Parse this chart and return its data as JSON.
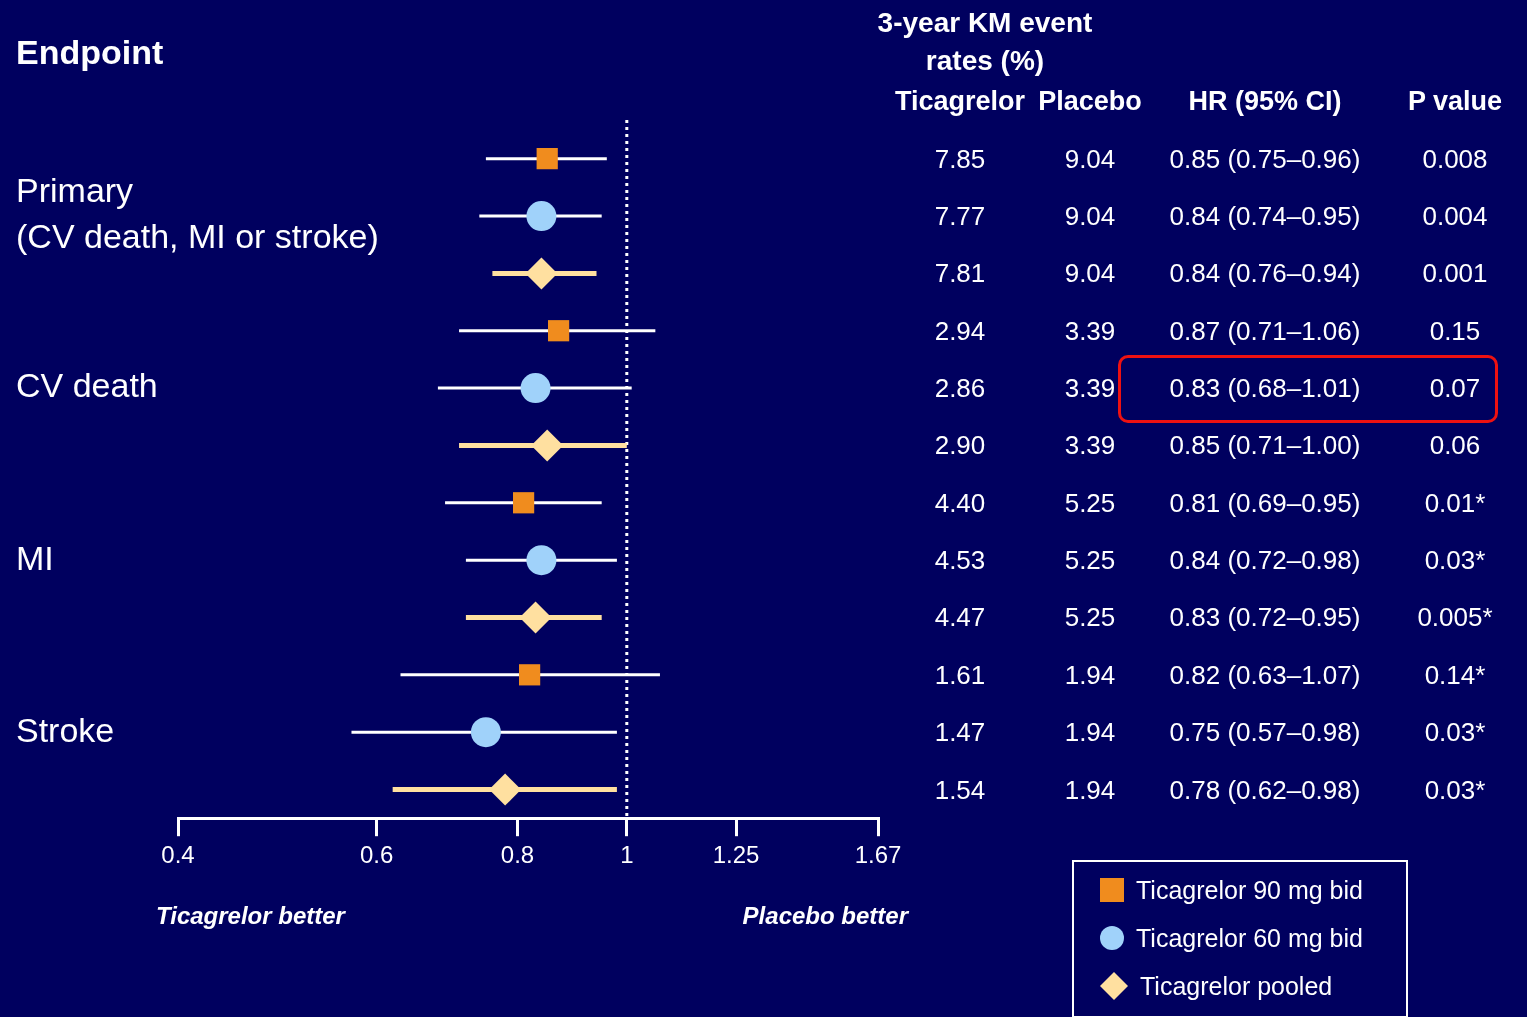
{
  "chart_data": [
    {
      "type": "scatter",
      "orientation": "horizontal",
      "ylabel": "Endpoint",
      "log": "x",
      "grid": false,
      "legend": "bottom right",
      "categories": [
        null,
        "Primary (CV death, MI or stroke)",
        null,
        null,
        "CV death",
        null,
        null,
        "MI",
        null,
        null,
        "Stroke",
        null
      ],
      "xlim": [
        0.4,
        1.67
      ],
      "xticks": [
        0.4,
        0.6,
        0.8,
        1,
        1.25,
        1.67
      ],
      "ref_lines": [
        {
          "axis": "x",
          "value": 1,
          "color": "#ffffff",
          "line_style": "dotted"
        }
      ],
      "annotations": [
        "Ticagrelor better",
        "Placebo better"
      ],
      "series": [
        {
          "name": "Ticagrelor 90 mg bid",
          "color": "#f08c1e",
          "marker": "square",
          "values": [
            0.85,
            null,
            null,
            0.87,
            null,
            null,
            0.81,
            null,
            null,
            0.82,
            null,
            null
          ],
          "errors": [
            [
              0.75,
              0.96
            ],
            null,
            null,
            [
              0.71,
              1.06
            ],
            null,
            null,
            [
              0.69,
              0.95
            ],
            null,
            null,
            [
              0.63,
              1.07
            ],
            null,
            null
          ]
        },
        {
          "name": "Ticagrelor 60 mg bid",
          "color": "#a0d2fa",
          "marker": "circle",
          "values": [
            null,
            0.84,
            null,
            null,
            0.83,
            null,
            null,
            0.84,
            null,
            null,
            0.75,
            null
          ],
          "errors": [
            null,
            [
              0.74,
              0.95
            ],
            null,
            null,
            [
              0.68,
              1.01
            ],
            null,
            null,
            [
              0.72,
              0.98
            ],
            null,
            null,
            [
              0.57,
              0.98
            ],
            null
          ]
        },
        {
          "name": "Ticagrelor pooled",
          "color": "#ffe0a0",
          "marker": "diamond",
          "values": [
            null,
            null,
            0.84,
            null,
            null,
            0.85,
            null,
            null,
            0.83,
            null,
            null,
            0.78
          ],
          "errors": [
            null,
            null,
            [
              0.76,
              0.94
            ],
            null,
            null,
            [
              0.71,
              1.0
            ],
            null,
            null,
            [
              0.72,
              0.95
            ],
            null,
            null,
            [
              0.62,
              0.98
            ]
          ]
        }
      ]
    },
    {
      "type": "other",
      "title": "3-year KM event rates (%)",
      "categories": [
        "Ticagrelor",
        "Placebo",
        "HR (95% CI)",
        "P value"
      ],
      "cell_labels": [
        [
          "7.85",
          "9.04",
          "0.85 (0.75–0.96)",
          "0.008"
        ],
        [
          "7.77",
          "9.04",
          "0.84 (0.74–0.95)",
          "0.004"
        ],
        [
          "7.81",
          "9.04",
          "0.84 (0.76–0.94)",
          "0.001"
        ],
        [
          "2.94",
          "3.39",
          "0.87 (0.71–1.06)",
          "0.15"
        ],
        [
          "2.86",
          "3.39",
          "0.83 (0.68–1.01)",
          "0.07"
        ],
        [
          "2.90",
          "3.39",
          "0.85 (0.71–1.00)",
          "0.06"
        ],
        [
          "4.40",
          "5.25",
          "0.81 (0.69–0.95)",
          "0.01*"
        ],
        [
          "4.53",
          "5.25",
          "0.84 (0.72–0.98)",
          "0.03*"
        ],
        [
          "4.47",
          "5.25",
          "0.83 (0.72–0.95)",
          "0.005*"
        ],
        [
          "1.61",
          "1.94",
          "0.82 (0.63–1.07)",
          "0.14*"
        ],
        [
          "1.47",
          "1.94",
          "0.75 (0.57–0.98)",
          "0.03*"
        ],
        [
          "1.54",
          "1.94",
          "0.78 (0.62–0.98)",
          "0.03*"
        ]
      ]
    }
  ]
}
